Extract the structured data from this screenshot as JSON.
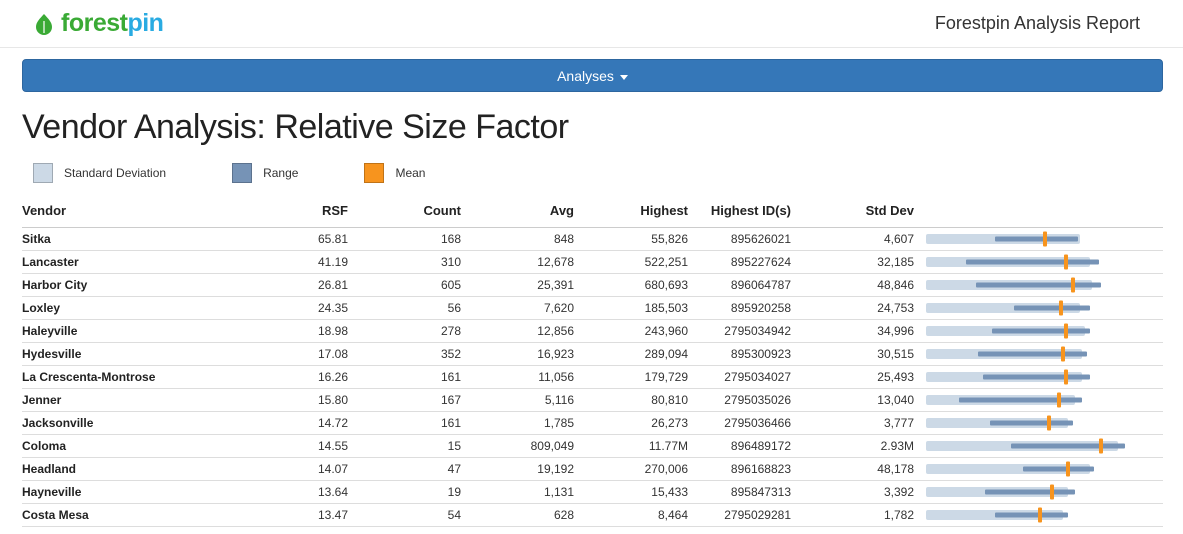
{
  "colors": {
    "brand_green": "#3aaa35",
    "brand_blue": "#29abe2",
    "button_blue": "#3577b8",
    "button_border": "#2d669f",
    "std_dev": "#ccd9e6",
    "range": "#7693b6",
    "mean": "#f7941e"
  },
  "header": {
    "logo_text_green": "forest",
    "logo_text_blue": "pin",
    "report_title": "Forestpin Analysis Report"
  },
  "toolbar": {
    "analyses_label": "Analyses"
  },
  "page": {
    "title": "Vendor Analysis: Relative Size Factor"
  },
  "legend": {
    "std_dev_label": "Standard Deviation",
    "range_label": "Range",
    "mean_label": "Mean"
  },
  "table": {
    "columns": [
      "Vendor",
      "RSF",
      "Count",
      "Avg",
      "Highest",
      "Highest ID(s)",
      "Std Dev"
    ],
    "rows": [
      {
        "vendor": "Sitka",
        "rsf": "65.81",
        "count": "168",
        "avg": "848",
        "highest": "55,826",
        "highest_id": "895626021",
        "std_dev": "4,607",
        "chart": {
          "std_width": 65,
          "range_start": 29,
          "range_end": 64,
          "mean": 50
        }
      },
      {
        "vendor": "Lancaster",
        "rsf": "41.19",
        "count": "310",
        "avg": "12,678",
        "highest": "522,251",
        "highest_id": "895227624",
        "std_dev": "32,185",
        "chart": {
          "std_width": 69,
          "range_start": 17,
          "range_end": 73,
          "mean": 59
        }
      },
      {
        "vendor": "Harbor City",
        "rsf": "26.81",
        "count": "605",
        "avg": "25,391",
        "highest": "680,693",
        "highest_id": "896064787",
        "std_dev": "48,846",
        "chart": {
          "std_width": 70,
          "range_start": 21,
          "range_end": 74,
          "mean": 62
        }
      },
      {
        "vendor": "Loxley",
        "rsf": "24.35",
        "count": "56",
        "avg": "7,620",
        "highest": "185,503",
        "highest_id": "895920258",
        "std_dev": "24,753",
        "chart": {
          "std_width": 65,
          "range_start": 37,
          "range_end": 69,
          "mean": 57
        }
      },
      {
        "vendor": "Haleyville",
        "rsf": "18.98",
        "count": "278",
        "avg": "12,856",
        "highest": "243,960",
        "highest_id": "2795034942",
        "std_dev": "34,996",
        "chart": {
          "std_width": 67,
          "range_start": 28,
          "range_end": 69,
          "mean": 59
        }
      },
      {
        "vendor": "Hydesville",
        "rsf": "17.08",
        "count": "352",
        "avg": "16,923",
        "highest": "289,094",
        "highest_id": "895300923",
        "std_dev": "30,515",
        "chart": {
          "std_width": 66,
          "range_start": 22,
          "range_end": 68,
          "mean": 58
        }
      },
      {
        "vendor": "La Crescenta-Montrose",
        "rsf": "16.26",
        "count": "161",
        "avg": "11,056",
        "highest": "179,729",
        "highest_id": "2795034027",
        "std_dev": "25,493",
        "chart": {
          "std_width": 66,
          "range_start": 24,
          "range_end": 69,
          "mean": 59
        }
      },
      {
        "vendor": "Jenner",
        "rsf": "15.80",
        "count": "167",
        "avg": "5,116",
        "highest": "80,810",
        "highest_id": "2795035026",
        "std_dev": "13,040",
        "chart": {
          "std_width": 63,
          "range_start": 14,
          "range_end": 66,
          "mean": 56
        }
      },
      {
        "vendor": "Jacksonville",
        "rsf": "14.72",
        "count": "161",
        "avg": "1,785",
        "highest": "26,273",
        "highest_id": "2795036466",
        "std_dev": "3,777",
        "chart": {
          "std_width": 60,
          "range_start": 27,
          "range_end": 62,
          "mean": 52
        }
      },
      {
        "vendor": "Coloma",
        "rsf": "14.55",
        "count": "15",
        "avg": "809,049",
        "highest": "11.77M",
        "highest_id": "896489172",
        "std_dev": "2.93M",
        "chart": {
          "std_width": 81,
          "range_start": 36,
          "range_end": 84,
          "mean": 74
        }
      },
      {
        "vendor": "Headland",
        "rsf": "14.07",
        "count": "47",
        "avg": "19,192",
        "highest": "270,006",
        "highest_id": "896168823",
        "std_dev": "48,178",
        "chart": {
          "std_width": 69,
          "range_start": 41,
          "range_end": 71,
          "mean": 60
        }
      },
      {
        "vendor": "Hayneville",
        "rsf": "13.64",
        "count": "19",
        "avg": "1,131",
        "highest": "15,433",
        "highest_id": "895847313",
        "std_dev": "3,392",
        "chart": {
          "std_width": 60,
          "range_start": 25,
          "range_end": 63,
          "mean": 53
        }
      },
      {
        "vendor": "Costa Mesa",
        "rsf": "13.47",
        "count": "54",
        "avg": "628",
        "highest": "8,464",
        "highest_id": "2795029281",
        "std_dev": "1,782",
        "chart": {
          "std_width": 58,
          "range_start": 29,
          "range_end": 60,
          "mean": 48
        }
      }
    ]
  }
}
